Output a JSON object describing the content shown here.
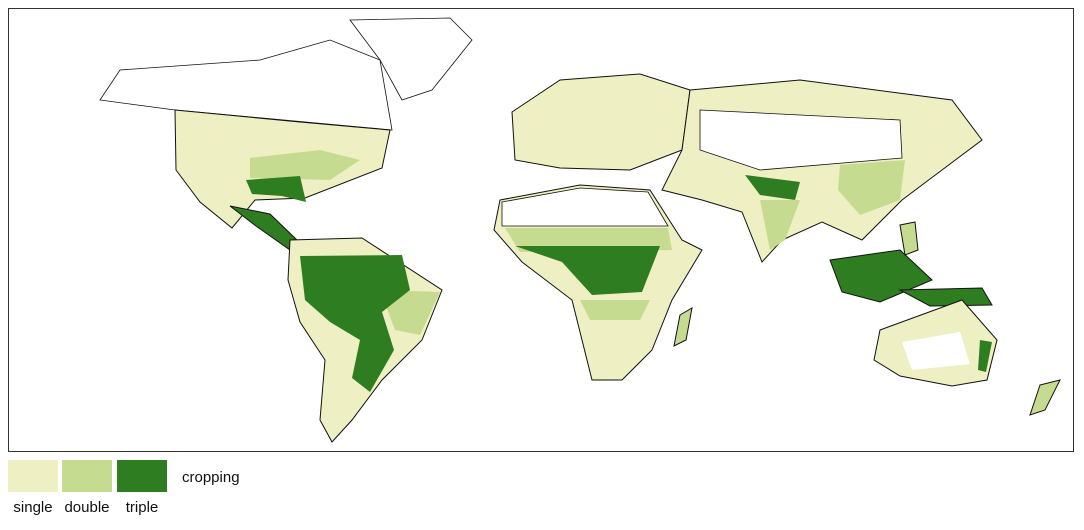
{
  "legend": {
    "title": "cropping",
    "items": [
      {
        "label": "single",
        "color": "#eeefc2"
      },
      {
        "label": "double",
        "color": "#c5dc90"
      },
      {
        "label": "triple",
        "color": "#2f7d21"
      }
    ]
  }
}
